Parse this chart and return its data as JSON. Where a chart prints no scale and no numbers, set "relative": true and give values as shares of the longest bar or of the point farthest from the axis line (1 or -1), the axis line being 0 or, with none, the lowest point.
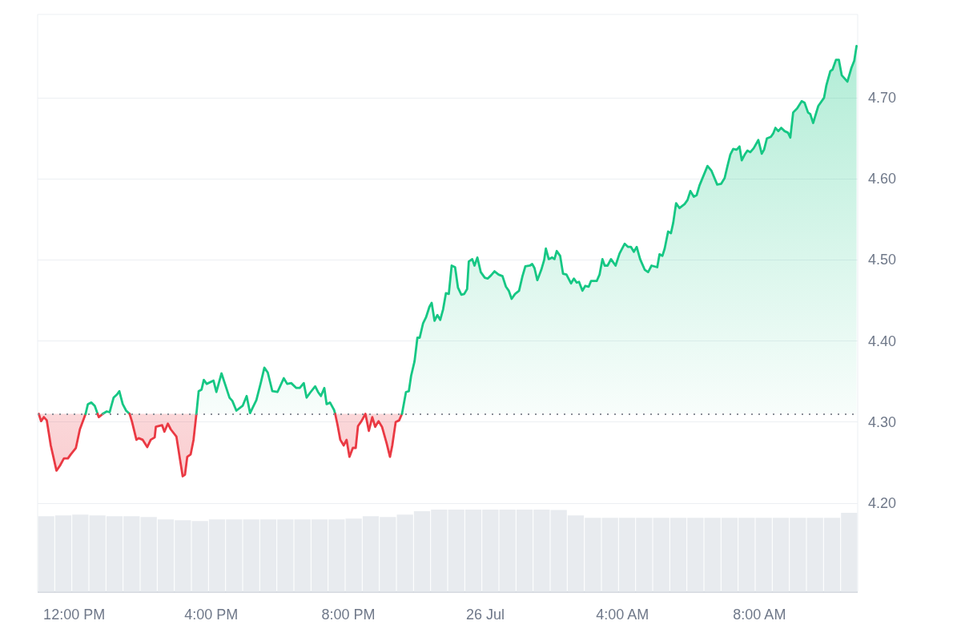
{
  "chart_data": [
    {
      "type": "area",
      "xlim": [
        "--07-25T10:56",
        "--07-26T10:52"
      ],
      "ylim": [
        4.091,
        4.803
      ],
      "xticks": [
        {
          "value": "--07-25T12:00",
          "label": "12:00 PM"
        },
        {
          "value": "--07-25T16:00",
          "label": "4:00 PM"
        },
        {
          "value": "--07-25T20:00",
          "label": "8:00 PM"
        },
        {
          "value": "--07-26T00:00",
          "label": "26 Jul"
        },
        {
          "value": "--07-26T04:00",
          "label": "4:00 AM"
        },
        {
          "value": "--07-26T08:00",
          "label": "8:00 AM"
        }
      ],
      "yticks": [
        {
          "value": 4.2,
          "label": "4.20"
        },
        {
          "value": 4.3,
          "label": "4.30"
        },
        {
          "value": 4.4,
          "label": "4.40"
        },
        {
          "value": 4.5,
          "label": "4.50"
        },
        {
          "value": 4.6,
          "label": "4.60"
        },
        {
          "value": 4.7,
          "label": "4.70"
        }
      ],
      "grid": "y",
      "ref_lines": [
        {
          "axis": "y",
          "value": 4.31,
          "line_style": "dotted",
          "color": "#8a8f98"
        }
      ],
      "series": [
        {
          "color": "#ea3943",
          "x": [
            "--07-25T10:58",
            "--07-25T11:02",
            "--07-25T11:07",
            "--07-25T11:12",
            "--07-25T11:19",
            "--07-25T11:29",
            "--07-25T11:35",
            "--07-25T11:42",
            "--07-25T11:49",
            "--07-25T11:54",
            "--07-25T12:03",
            "--07-25T12:10",
            "--07-25T12:20"
          ],
          "values": [
            4.31,
            4.301,
            4.306,
            4.302,
            4.271,
            4.24,
            4.246,
            4.255,
            4.255,
            4.26,
            4.268,
            4.291,
            4.31
          ]
        },
        {
          "color": "#16c784",
          "x": [
            "--07-25T12:20",
            "--07-25T12:24",
            "--07-25T12:30",
            "--07-25T12:36",
            "--07-25T12:41"
          ],
          "values": [
            4.31,
            4.322,
            4.324,
            4.32,
            4.31
          ]
        },
        {
          "type": "line",
          "color": "#ea3943",
          "x": [
            "--07-25T12:41",
            "--07-25T12:43",
            "--07-25T12:50"
          ],
          "values": [
            4.31,
            4.306,
            4.31
          ]
        },
        {
          "color": "#16c784",
          "x": [
            "--07-25T12:50",
            "--07-25T12:57",
            "--07-25T13:02",
            "--07-25T13:09",
            "--07-25T13:15",
            "--07-25T13:19",
            "--07-25T13:25",
            "--07-25T13:31",
            "--07-25T13:37"
          ],
          "values": [
            4.31,
            4.313,
            4.312,
            4.33,
            4.334,
            4.338,
            4.322,
            4.314,
            4.31
          ]
        },
        {
          "color": "#ea3943",
          "x": [
            "--07-25T13:37",
            "--07-25T13:41",
            "--07-25T13:49",
            "--07-25T13:53",
            "--07-25T14:00",
            "--07-25T14:08",
            "--07-25T14:14",
            "--07-25T14:21",
            "--07-25T14:23",
            "--07-25T14:34",
            "--07-25T14:38",
            "--07-25T14:44",
            "--07-25T14:49",
            "--07-25T14:59",
            "--07-25T15:05",
            "--07-25T15:10",
            "--07-25T15:14",
            "--07-25T15:18",
            "--07-25T15:24",
            "--07-25T15:29",
            "--07-25T15:34"
          ],
          "values": [
            4.31,
            4.301,
            4.278,
            4.28,
            4.278,
            4.269,
            4.278,
            4.281,
            4.294,
            4.296,
            4.288,
            4.298,
            4.291,
            4.282,
            4.255,
            4.233,
            4.235,
            4.257,
            4.26,
            4.278,
            4.31
          ]
        },
        {
          "color": "#16c784",
          "x": [
            "--07-25T15:34",
            "--07-25T15:38",
            "--07-25T15:43",
            "--07-25T15:47",
            "--07-25T15:52",
            "--07-25T16:04",
            "--07-25T16:09",
            "--07-25T16:18",
            "--07-25T16:32",
            "--07-25T16:37",
            "--07-25T16:44",
            "--07-25T16:55",
            "--07-25T17:02",
            "--07-25T17:08",
            "--07-25T17:19",
            "--07-25T17:27",
            "--07-25T17:33",
            "--07-25T17:39",
            "--07-25T17:47",
            "--07-25T17:56",
            "--07-25T18:07",
            "--07-25T18:13",
            "--07-25T18:20",
            "--07-25T18:29",
            "--07-25T18:35",
            "--07-25T18:42",
            "--07-25T18:47",
            "--07-25T18:53",
            "--07-25T19:02",
            "--07-25T19:07",
            "--07-25T19:12",
            "--07-25T19:18",
            "--07-25T19:22",
            "--07-25T19:28",
            "--07-25T19:35",
            "--07-25T19:37"
          ],
          "values": [
            4.31,
            4.338,
            4.34,
            4.352,
            4.347,
            4.351,
            4.337,
            4.36,
            4.33,
            4.326,
            4.314,
            4.32,
            4.332,
            4.311,
            4.327,
            4.349,
            4.367,
            4.361,
            4.338,
            4.337,
            4.354,
            4.347,
            4.348,
            4.342,
            4.342,
            4.348,
            4.33,
            4.336,
            4.344,
            4.337,
            4.332,
            4.342,
            4.322,
            4.324,
            4.315,
            4.31
          ]
        },
        {
          "color": "#ea3943",
          "x": [
            "--07-25T19:37",
            "--07-25T19:41",
            "--07-25T19:46",
            "--07-25T19:52",
            "--07-25T19:57",
            "--07-25T20:02",
            "--07-25T20:08",
            "--07-25T20:13",
            "--07-25T20:17",
            "--07-25T20:23",
            "--07-25T20:30",
            "--07-25T20:36",
            "--07-25T20:42",
            "--07-25T20:47",
            "--07-25T20:53",
            "--07-25T20:59",
            "--07-25T21:07",
            "--07-25T21:13",
            "--07-25T21:17",
            "--07-25T21:23",
            "--07-25T21:29",
            "--07-25T21:34"
          ],
          "values": [
            4.31,
            4.297,
            4.278,
            4.271,
            4.278,
            4.257,
            4.268,
            4.268,
            4.295,
            4.301,
            4.31,
            4.289,
            4.306,
            4.294,
            4.301,
            4.294,
            4.274,
            4.257,
            4.271,
            4.3,
            4.302,
            4.31
          ]
        },
        {
          "color": "#16c784",
          "x": [
            "--07-25T21:34",
            "--07-25T21:41",
            "--07-25T21:46",
            "--07-25T21:50",
            "--07-25T21:56",
            "--07-25T22:01",
            "--07-25T22:05",
            "--07-25T22:11",
            "--07-25T22:16",
            "--07-25T22:22",
            "--07-25T22:26",
            "--07-25T22:31",
            "--07-25T22:36",
            "--07-25T22:41",
            "--07-25T22:46",
            "--07-25T22:51",
            "--07-25T22:56",
            "--07-25T23:01",
            "--07-25T23:07",
            "--07-25T23:12",
            "--07-25T23:18",
            "--07-25T23:23",
            "--07-25T23:28",
            "--07-25T23:31",
            "--07-25T23:37",
            "--07-25T23:41",
            "--07-25T23:46",
            "--07-25T23:52",
            "--07-25T23:59",
            "--07-26T00:04",
            "--07-26T00:10",
            "--07-26T00:16",
            "--07-26T00:23",
            "--07-26T00:30",
            "--07-26T00:36",
            "--07-26T00:41",
            "--07-26T00:46",
            "--07-26T00:52",
            "--07-26T00:59",
            "--07-26T01:05",
            "--07-26T01:10",
            "--07-26T01:18",
            "--07-26T01:22",
            "--07-26T01:26",
            "--07-26T01:31",
            "--07-26T01:38",
            "--07-26T01:43",
            "--07-26T01:46",
            "--07-26T01:51",
            "--07-26T01:57",
            "--07-26T02:01",
            "--07-26T02:05",
            "--07-26T02:11",
            "--07-26T02:16",
            "--07-26T02:22",
            "--07-26T02:30",
            "--07-26T02:35",
            "--07-26T02:40",
            "--07-26T02:44",
            "--07-26T02:50",
            "--07-26T02:55",
            "--07-26T03:01",
            "--07-26T03:05",
            "--07-26T03:15",
            "--07-26T03:20",
            "--07-26T03:25",
            "--07-26T03:29",
            "--07-26T03:34",
            "--07-26T03:40",
            "--07-26T03:48",
            "--07-26T03:55",
            "--07-26T04:04",
            "--07-26T04:10",
            "--07-26T04:15",
            "--07-26T04:20",
            "--07-26T04:25",
            "--07-26T04:31",
            "--07-26T04:39",
            "--07-26T04:45",
            "--07-26T04:51",
            "--07-26T05:01",
            "--07-26T05:05",
            "--07-26T05:10",
            "--07-26T05:14",
            "--07-26T05:20",
            "--07-26T05:25",
            "--07-26T05:29",
            "--07-26T05:34",
            "--07-26T05:40",
            "--07-26T05:49",
            "--07-26T05:54",
            "--07-26T05:59",
            "--07-26T06:05",
            "--07-26T06:10",
            "--07-26T06:15",
            "--07-26T06:29",
            "--07-26T06:36",
            "--07-26T06:46",
            "--07-26T06:53",
            "--07-26T06:59",
            "--07-26T07:04",
            "--07-26T07:09",
            "--07-26T07:14",
            "--07-26T07:20",
            "--07-26T07:25",
            "--07-26T07:29",
            "--07-26T07:35",
            "--07-26T07:39",
            "--07-26T07:44",
            "--07-26T07:50",
            "--07-26T07:58",
            "--07-26T08:04",
            "--07-26T08:08",
            "--07-26T08:13",
            "--07-26T08:20",
            "--07-26T08:24",
            "--07-26T08:28",
            "--07-26T08:33",
            "--07-26T08:38",
            "--07-26T08:44",
            "--07-26T08:50",
            "--07-26T08:54",
            "--07-26T08:59",
            "--07-26T09:06",
            "--07-26T09:14",
            "--07-26T09:19",
            "--07-26T09:25",
            "--07-26T09:29",
            "--07-26T09:34",
            "--07-26T09:43",
            "--07-26T09:53",
            "--07-26T09:57",
            "--07-26T10:04",
            "--07-26T10:08",
            "--07-26T10:14",
            "--07-26T10:19",
            "--07-26T10:24",
            "--07-26T10:34",
            "--07-26T10:41",
            "--07-26T10:46",
            "--07-26T10:50"
          ],
          "values": [
            4.31,
            4.337,
            4.338,
            4.357,
            4.375,
            4.404,
            4.404,
            4.422,
            4.429,
            4.442,
            4.447,
            4.425,
            4.432,
            4.426,
            4.439,
            4.459,
            4.458,
            4.493,
            4.491,
            4.466,
            4.457,
            4.458,
            4.464,
            4.498,
            4.501,
            4.493,
            4.503,
            4.485,
            4.478,
            4.477,
            4.481,
            4.486,
            4.482,
            4.48,
            4.467,
            4.462,
            4.452,
            4.458,
            4.462,
            4.48,
            4.492,
            4.493,
            4.495,
            4.49,
            4.475,
            4.488,
            4.5,
            4.514,
            4.501,
            4.503,
            4.501,
            4.511,
            4.505,
            4.483,
            4.482,
            4.471,
            4.477,
            4.472,
            4.473,
            4.462,
            4.468,
            4.467,
            4.474,
            4.474,
            4.482,
            4.501,
            4.493,
            4.493,
            4.501,
            4.493,
            4.508,
            4.52,
            4.516,
            4.516,
            4.51,
            4.516,
            4.501,
            4.488,
            4.485,
            4.493,
            4.491,
            4.507,
            4.505,
            4.514,
            4.535,
            4.533,
            4.546,
            4.57,
            4.564,
            4.569,
            4.574,
            4.585,
            4.578,
            4.58,
            4.592,
            4.616,
            4.61,
            4.593,
            4.594,
            4.601,
            4.616,
            4.63,
            4.637,
            4.636,
            4.64,
            4.623,
            4.631,
            4.635,
            4.633,
            4.638,
            4.648,
            4.631,
            4.636,
            4.65,
            4.652,
            4.656,
            4.663,
            4.659,
            4.663,
            4.659,
            4.657,
            4.651,
            4.682,
            4.687,
            4.696,
            4.694,
            4.682,
            4.68,
            4.669,
            4.69,
            4.7,
            4.715,
            4.733,
            4.735,
            4.747,
            4.747,
            4.728,
            4.72,
            4.737,
            4.746,
            4.764
          ]
        }
      ]
    },
    {
      "type": "bar",
      "relative": true,
      "color": "#e8ebef",
      "categories": [
        null,
        null,
        null,
        null,
        null,
        null,
        null,
        null,
        null,
        null,
        null,
        null,
        null,
        null,
        null,
        null,
        null,
        null,
        null,
        null,
        null,
        null,
        null,
        null,
        null,
        null,
        null,
        null,
        null,
        null,
        null,
        null,
        null,
        null,
        null,
        null,
        null,
        null,
        null,
        null,
        null,
        null,
        null,
        null,
        null,
        null,
        null,
        null
      ],
      "values": [
        0.92,
        0.93,
        0.94,
        0.93,
        0.92,
        0.92,
        0.91,
        0.88,
        0.87,
        0.86,
        0.88,
        0.88,
        0.88,
        0.88,
        0.88,
        0.88,
        0.88,
        0.88,
        0.89,
        0.92,
        0.91,
        0.94,
        0.98,
        1,
        1,
        1,
        1,
        1,
        1,
        1,
        0.995,
        0.93,
        0.9,
        0.9,
        0.9,
        0.9,
        0.9,
        0.9,
        0.9,
        0.9,
        0.9,
        0.9,
        0.9,
        0.9,
        0.9,
        0.9,
        0.9,
        0.96
      ]
    }
  ]
}
